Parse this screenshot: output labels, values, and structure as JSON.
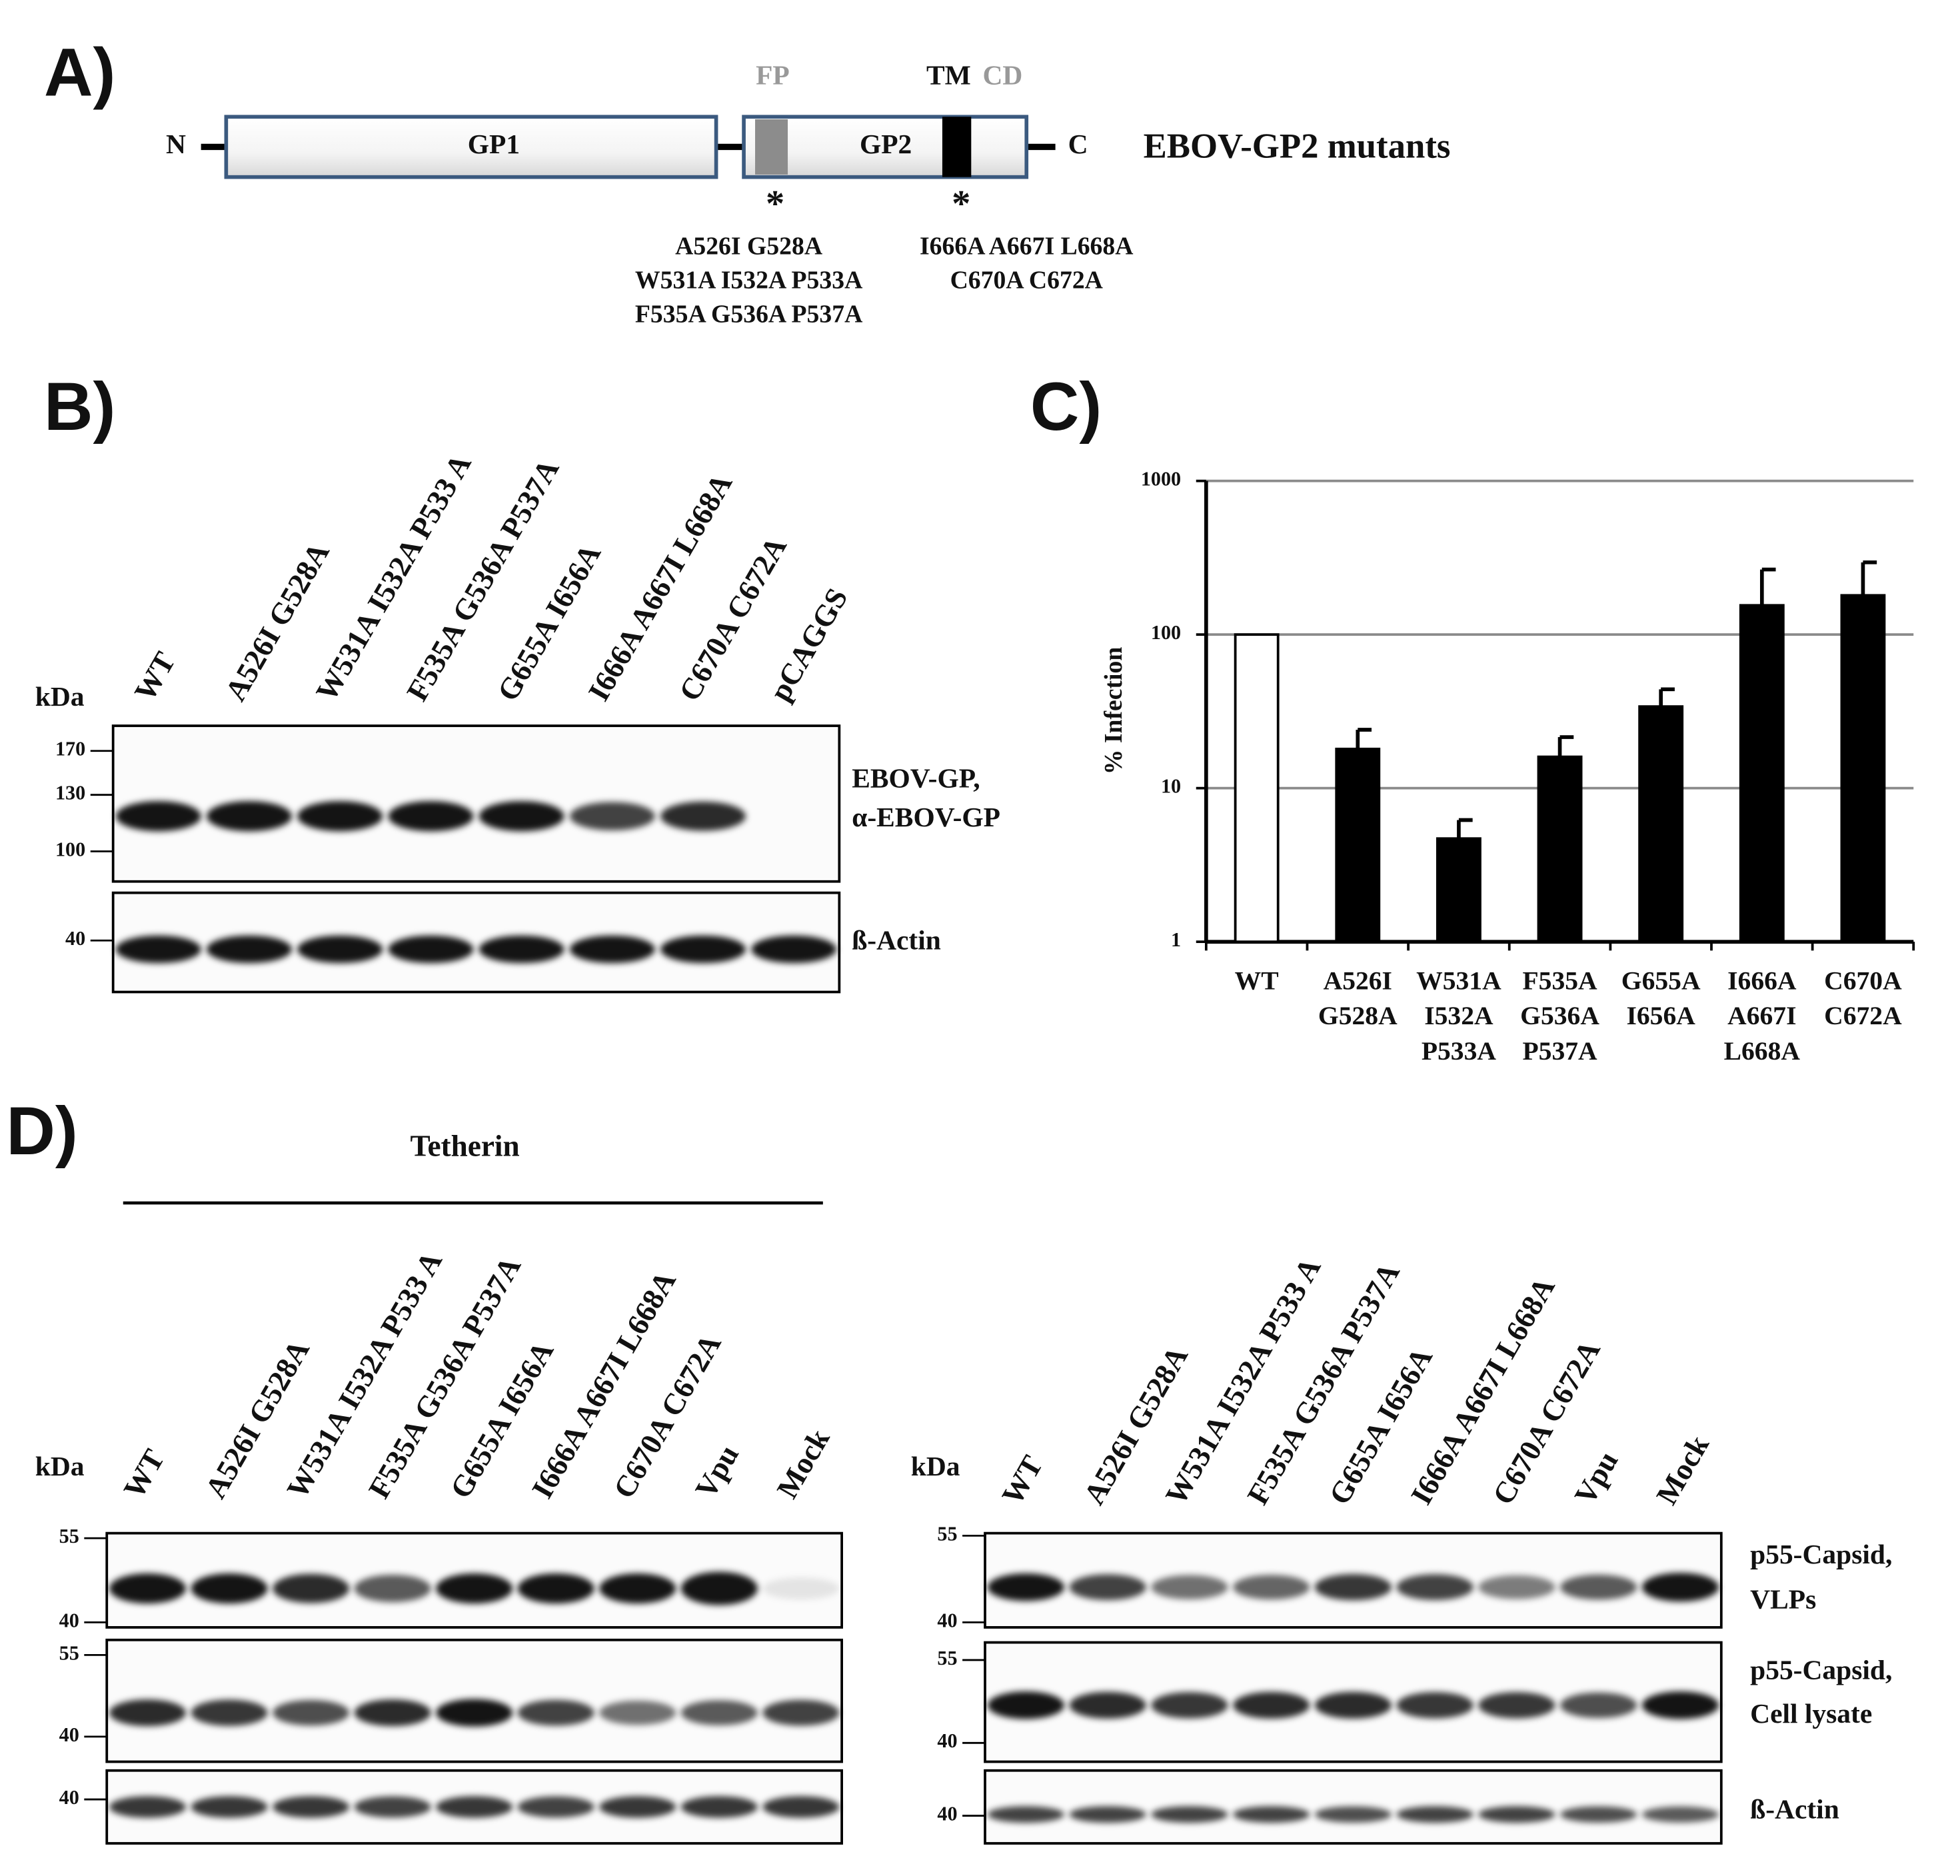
{
  "panel_a": {
    "label": "A)",
    "n_term": "N",
    "c_term": "C",
    "domains": {
      "gp1": "GP1",
      "gp2": "GP2",
      "fp": "FP",
      "tm": "TM",
      "cd": "CD"
    },
    "title": "EBOV-GP2 mutants",
    "asterisks": [
      "*",
      "*"
    ],
    "fp_mutants": [
      "A526I G528A",
      "W531A I532A P533A",
      "F535A G536A P537A"
    ],
    "tm_mutants": [
      "I666A A667I L668A",
      "C670A C672A"
    ]
  },
  "panel_b": {
    "label": "B)",
    "kda": "kDa",
    "lanes": [
      "WT",
      "A526I G528A",
      "W531A I532A P533 A",
      "F535A G536A P537A",
      "G655A I656A",
      "I666A A667I L668A",
      "C670A C672A",
      "pCAGGS"
    ],
    "gp_markers": [
      170,
      130,
      100
    ],
    "actin_markers": [
      40
    ],
    "gp_label": [
      "EBOV-GP,",
      "α-EBOV-GP"
    ],
    "actin_label": "ß-Actin"
  },
  "chart_data": {
    "type": "bar",
    "panel_label": "C)",
    "y_label": "% Infection",
    "categories": [
      "WT",
      "A526I G528A",
      "W531A I532A P533A",
      "F535A G536A P537A",
      "G655A I656A",
      "I666A A667I L668A",
      "C670A C672A"
    ],
    "values": [
      100,
      18,
      4.7,
      16,
      34,
      155,
      180
    ],
    "errors": [
      0,
      6,
      1.5,
      5.5,
      10,
      110,
      115
    ],
    "colors": [
      "#ffffff",
      "#000000",
      "#000000",
      "#000000",
      "#000000",
      "#000000",
      "#000000"
    ],
    "log_scale": true,
    "ylim": [
      1,
      1000
    ],
    "yticks": [
      1,
      10,
      100,
      1000
    ],
    "grid": true
  },
  "panel_d": {
    "label": "D)",
    "group": "Tetherin",
    "left": {
      "kda": "kDa",
      "lanes": [
        "WT",
        "A526I G528A",
        "W531A I532A P533 A",
        "F535A G536A P537A",
        "G655A I656A",
        "I666A A667I L668A",
        "C670A C672A",
        "Vpu",
        "Mock"
      ],
      "markers": [
        [
          55,
          40
        ],
        [
          55,
          40
        ],
        [
          40
        ]
      ]
    },
    "right": {
      "kda": "kDa",
      "lanes": [
        "WT",
        "A526I G528A",
        "W531A I532A P533 A",
        "F535A G536A P537A",
        "G655A I656A",
        "I666A A667I L668A",
        "C670A C672A",
        "Vpu",
        "Mock"
      ],
      "markers": [
        [
          55,
          40
        ],
        [
          55,
          40
        ],
        [
          40
        ]
      ],
      "blot_labels": [
        [
          "p55-Capsid,",
          "VLPs"
        ],
        [
          "p55-Capsid,",
          "Cell lysate"
        ],
        [
          "ß-Actin"
        ]
      ]
    }
  }
}
